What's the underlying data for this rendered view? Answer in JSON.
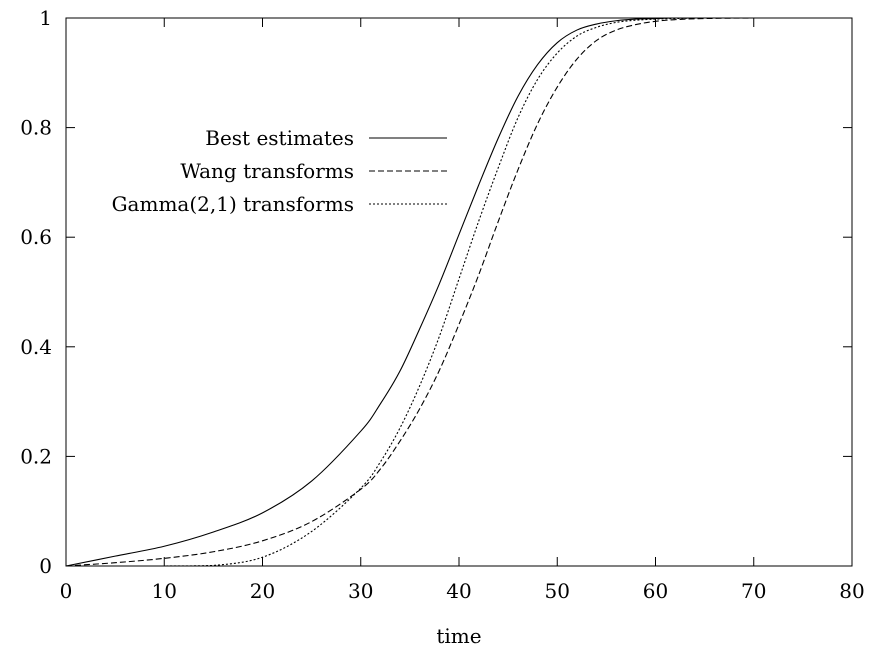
{
  "chart_data": {
    "type": "line",
    "title": "",
    "xlabel": "time",
    "ylabel": "",
    "xlim": [
      0,
      80
    ],
    "ylim": [
      0,
      1
    ],
    "xticks": [
      0,
      10,
      20,
      30,
      40,
      50,
      60,
      70,
      80
    ],
    "yticks": [
      0,
      0.2,
      0.4,
      0.6,
      0.8,
      1
    ],
    "xtick_labels": [
      "0",
      "10",
      "20",
      "30",
      "40",
      "50",
      "60",
      "70",
      "80"
    ],
    "ytick_labels": [
      "0",
      "0.2",
      "0.4",
      "0.6",
      "0.8",
      "1"
    ],
    "grid": false,
    "legend_position": "top-left",
    "x": [
      0,
      5,
      10,
      15,
      20,
      25,
      30,
      32,
      34,
      36,
      38,
      40,
      42,
      44,
      46,
      48,
      50,
      52,
      54,
      56,
      58,
      60,
      62,
      65,
      70,
      80
    ],
    "series": [
      {
        "name": "Best estimates",
        "dash": "solid",
        "values": [
          0,
          0.018,
          0.036,
          0.062,
          0.097,
          0.155,
          0.246,
          0.296,
          0.356,
          0.433,
          0.515,
          0.605,
          0.695,
          0.781,
          0.857,
          0.915,
          0.955,
          0.978,
          0.989,
          0.995,
          0.998,
          0.999,
          1,
          1,
          1,
          1
        ]
      },
      {
        "name": "Wang transforms",
        "dash": "dashed",
        "values": [
          0,
          0.006,
          0.014,
          0.026,
          0.046,
          0.081,
          0.14,
          0.177,
          0.228,
          0.287,
          0.357,
          0.441,
          0.531,
          0.629,
          0.723,
          0.807,
          0.874,
          0.925,
          0.959,
          0.978,
          0.988,
          0.994,
          0.997,
          0.999,
          1,
          1
        ]
      },
      {
        "name": "Gamma(2,1) transforms",
        "dash": "dotted",
        "values": [
          0,
          0,
          0,
          0.001,
          0.016,
          0.063,
          0.142,
          0.19,
          0.252,
          0.329,
          0.419,
          0.524,
          0.629,
          0.727,
          0.818,
          0.888,
          0.936,
          0.967,
          0.983,
          0.992,
          0.996,
          0.998,
          0.999,
          1,
          1,
          1
        ]
      }
    ]
  }
}
